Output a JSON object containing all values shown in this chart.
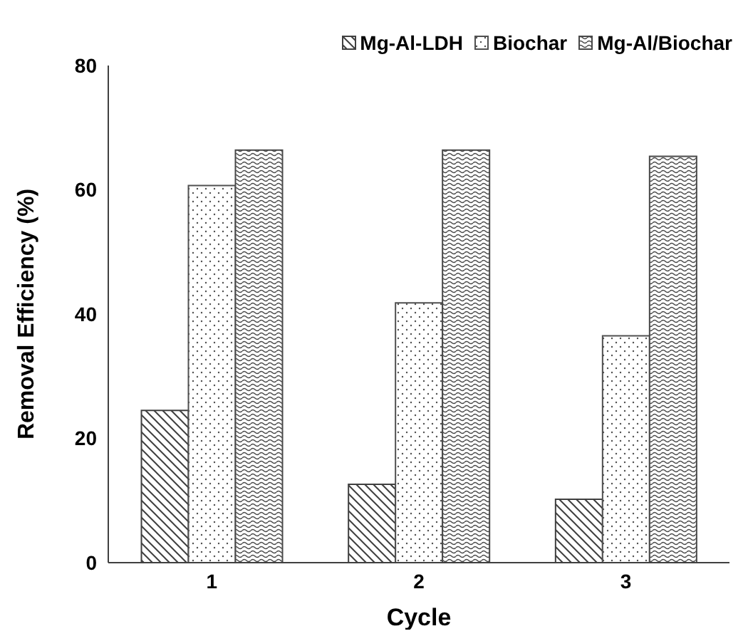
{
  "chart_data": {
    "type": "bar",
    "xlabel": "Cycle",
    "ylabel": "Removal Efficiency (%)",
    "categories": [
      "1",
      "2",
      "3"
    ],
    "series": [
      {
        "name": "Mg-Al-LDH",
        "color": "#404040",
        "values": [
          24.5,
          12.6,
          10.2
        ]
      },
      {
        "name": "Biochar",
        "color": "#505050",
        "values": [
          60.7,
          41.8,
          36.5
        ]
      },
      {
        "name": "Mg-Al/Biochar",
        "color": "#484848",
        "values": [
          66.4,
          66.4,
          65.4
        ]
      }
    ],
    "ylim": [
      0,
      80
    ],
    "yticks": [
      0,
      20,
      40,
      60,
      80
    ],
    "grid": false,
    "legend": "top right"
  }
}
